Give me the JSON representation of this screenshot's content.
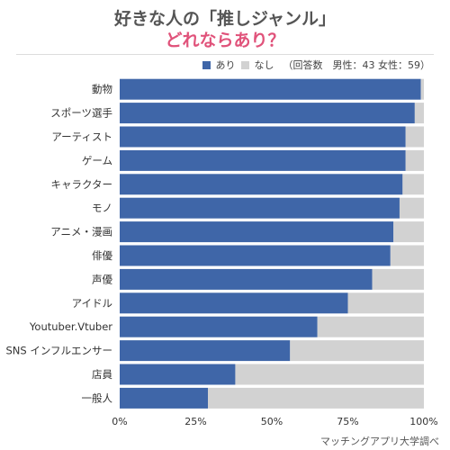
{
  "chart_data": {
    "type": "bar",
    "orientation": "horizontal",
    "stacked": true,
    "title": "好きな人の「推しジャンル」",
    "subtitle": "どれならあり？",
    "categories": [
      "動物",
      "スポーツ選手",
      "アーティスト",
      "ゲーム",
      "キャラクター",
      "モノ",
      "アニメ・漫画",
      "俳優",
      "声優",
      "アイドル",
      "Youtuber.Vtuber",
      "SNS インフルエンサー",
      "店員",
      "一般人"
    ],
    "series": [
      {
        "name": "あり",
        "color": "#3f66a8",
        "values": [
          99,
          97,
          94,
          94,
          93,
          92,
          90,
          89,
          83,
          75,
          65,
          56,
          38,
          29
        ]
      },
      {
        "name": "なし",
        "color": "#d2d2d2",
        "values": [
          1,
          3,
          6,
          6,
          7,
          8,
          10,
          11,
          17,
          25,
          35,
          44,
          62,
          71
        ]
      }
    ],
    "xlim": [
      0,
      100
    ],
    "xticks": [
      "0%",
      "25%",
      "50%",
      "75%",
      "100%"
    ],
    "legend_position": "top-right",
    "legend_note": "（回答数　男性：43 女性：59）",
    "grid": false
  },
  "source": "マッチングアプリ大学調べ"
}
